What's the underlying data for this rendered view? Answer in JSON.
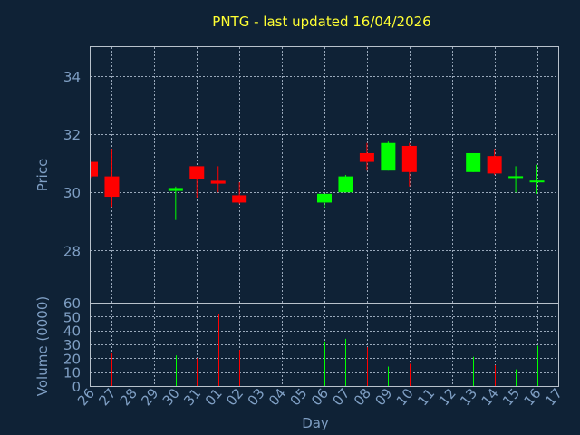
{
  "chart_data": [
    {
      "type": "candlestick",
      "title": "PNTG - last updated 16/04/2026",
      "ylabel": "Price",
      "xlabel": "",
      "ylim": [
        26.2,
        35
      ],
      "yticks": [
        28,
        30,
        32,
        34
      ],
      "grid": true,
      "up_color": "#00ff00",
      "down_color": "#ff0000",
      "categories": [
        "26",
        "27",
        "28",
        "29",
        "30",
        "31",
        "01",
        "02",
        "03",
        "04",
        "05",
        "06",
        "07",
        "08",
        "09",
        "10",
        "11",
        "12",
        "13",
        "14",
        "15",
        "16",
        "17"
      ],
      "candles": [
        {
          "day": "26",
          "open": 31.05,
          "high": 31.05,
          "low": 30.5,
          "close": 30.55
        },
        {
          "day": "27",
          "open": 30.55,
          "high": 31.5,
          "low": 29.5,
          "close": 29.85
        },
        {
          "day": "30",
          "open": 30.05,
          "high": 30.2,
          "low": 29.05,
          "close": 30.15
        },
        {
          "day": "31",
          "open": 30.9,
          "high": 30.9,
          "low": 29.8,
          "close": 30.45
        },
        {
          "day": "01",
          "open": 30.4,
          "high": 30.9,
          "low": 30.0,
          "close": 30.3
        },
        {
          "day": "02",
          "open": 29.9,
          "high": 30.35,
          "low": 29.6,
          "close": 29.65
        },
        {
          "day": "06",
          "open": 29.65,
          "high": 29.95,
          "low": 29.45,
          "close": 29.95
        },
        {
          "day": "07",
          "open": 30.0,
          "high": 30.6,
          "low": 30.0,
          "close": 30.55
        },
        {
          "day": "08",
          "open": 31.35,
          "high": 31.7,
          "low": 30.75,
          "close": 31.05
        },
        {
          "day": "09",
          "open": 30.75,
          "high": 31.75,
          "low": 30.75,
          "close": 31.7
        },
        {
          "day": "10",
          "open": 31.6,
          "high": 31.7,
          "low": 30.2,
          "close": 30.7
        },
        {
          "day": "13",
          "open": 30.7,
          "high": 31.35,
          "low": 30.7,
          "close": 31.35
        },
        {
          "day": "14",
          "open": 31.25,
          "high": 31.5,
          "low": 30.6,
          "close": 30.65
        },
        {
          "day": "15",
          "open": 30.5,
          "high": 30.9,
          "low": 30.0,
          "close": 30.55
        },
        {
          "day": "16",
          "open": 30.35,
          "high": 30.95,
          "low": 29.95,
          "close": 30.4
        }
      ]
    },
    {
      "type": "bar",
      "ylabel": "Volume (0000)",
      "xlabel": "Day",
      "ylim": [
        0,
        60
      ],
      "yticks": [
        0,
        10,
        20,
        30,
        40,
        50,
        60
      ],
      "categories": [
        "26",
        "27",
        "28",
        "29",
        "30",
        "31",
        "01",
        "02",
        "03",
        "04",
        "05",
        "06",
        "07",
        "08",
        "09",
        "10",
        "11",
        "12",
        "13",
        "14",
        "15",
        "16",
        "17"
      ],
      "bars": [
        {
          "day": "27",
          "value": 24,
          "color": "#ff0000"
        },
        {
          "day": "30",
          "value": 22,
          "color": "#00ff00"
        },
        {
          "day": "31",
          "value": 20,
          "color": "#ff0000"
        },
        {
          "day": "01",
          "value": 52,
          "color": "#ff0000"
        },
        {
          "day": "02",
          "value": 26,
          "color": "#ff0000"
        },
        {
          "day": "06",
          "value": 32,
          "color": "#00ff00"
        },
        {
          "day": "07",
          "value": 34,
          "color": "#00ff00"
        },
        {
          "day": "08",
          "value": 28,
          "color": "#ff0000"
        },
        {
          "day": "09",
          "value": 14,
          "color": "#00ff00"
        },
        {
          "day": "10",
          "value": 16,
          "color": "#ff0000"
        },
        {
          "day": "13",
          "value": 21,
          "color": "#00ff00"
        },
        {
          "day": "14",
          "value": 15,
          "color": "#ff0000"
        },
        {
          "day": "15",
          "value": 12,
          "color": "#00ff00"
        },
        {
          "day": "16",
          "value": 29,
          "color": "#00ff00"
        }
      ]
    }
  ]
}
